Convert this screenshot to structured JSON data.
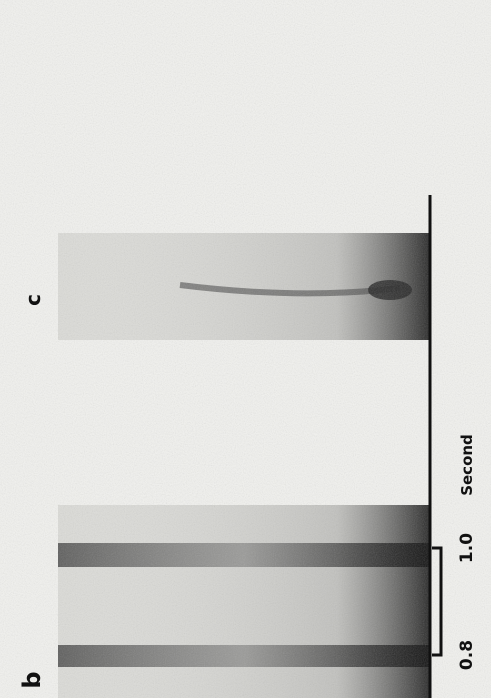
{
  "panels": {
    "b": "b",
    "c": "c"
  },
  "axis": {
    "title": "Second",
    "ticks": [
      "0.8",
      "1.0"
    ]
  }
}
